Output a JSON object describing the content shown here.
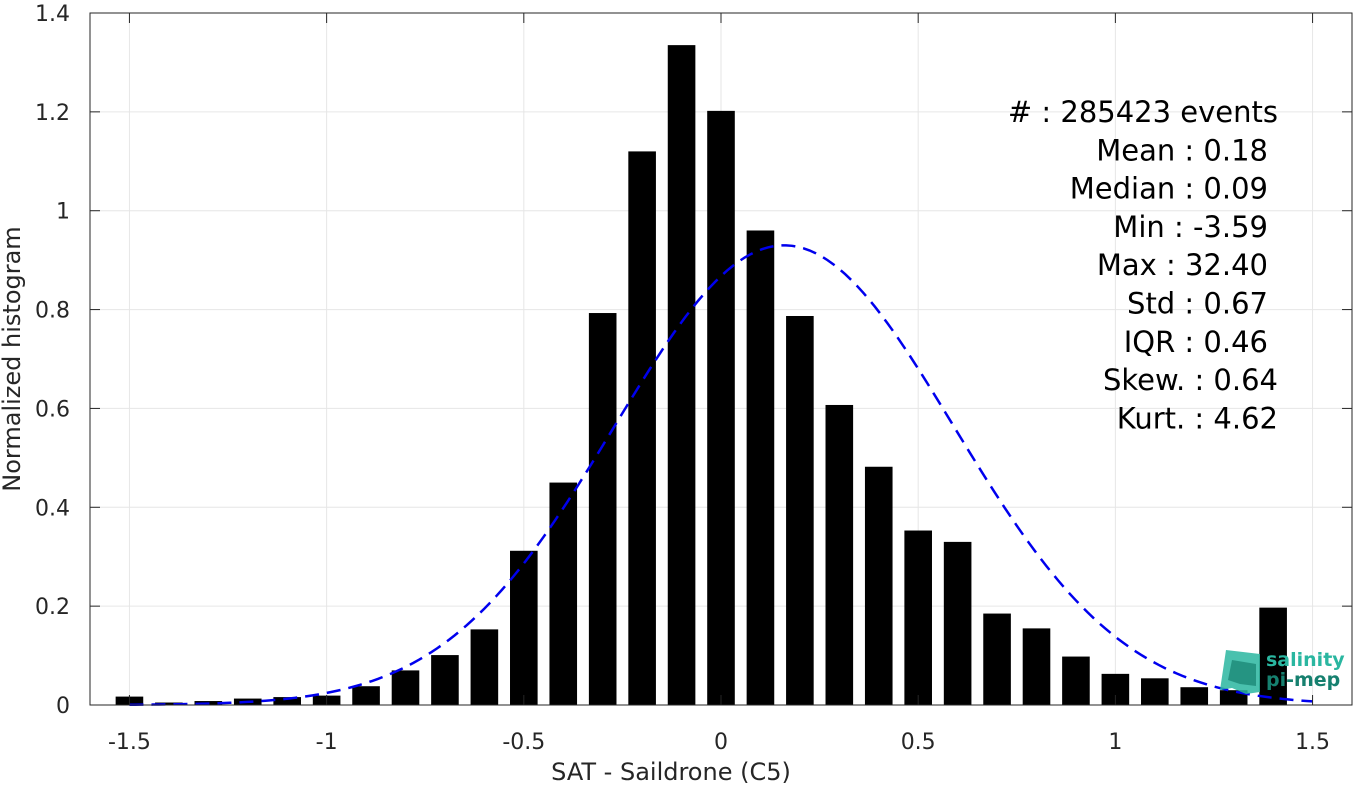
{
  "chart_data": {
    "type": "bar",
    "xlabel": "SAT - Saildrone (C5)",
    "ylabel": "Normalized histogram",
    "xlim": [
      -1.6,
      1.6
    ],
    "ylim": [
      0,
      1.4
    ],
    "xticks": [
      -1.5,
      -1,
      -0.5,
      0,
      0.5,
      1,
      1.5
    ],
    "xtick_labels": [
      "-1.5",
      "-1",
      "-0.5",
      "0",
      "0.5",
      "1",
      "1.5"
    ],
    "yticks": [
      0,
      0.2,
      0.4,
      0.6,
      0.8,
      1,
      1.2,
      1.4
    ],
    "ytick_labels": [
      "0",
      "0.2",
      "0.4",
      "0.6",
      "0.8",
      "1",
      "1.2",
      "1.4"
    ],
    "grid": true,
    "bar_width": 0.07,
    "bar_color": "#000000",
    "x": [
      -1.5,
      -1.4,
      -1.3,
      -1.2,
      -1.1,
      -1.0,
      -0.9,
      -0.8,
      -0.7,
      -0.6,
      -0.5,
      -0.4,
      -0.3,
      -0.2,
      -0.1,
      0.0,
      0.1,
      0.2,
      0.3,
      0.4,
      0.5,
      0.6,
      0.7,
      0.8,
      0.9,
      1.0,
      1.1,
      1.2,
      1.3,
      1.4,
      1.5
    ],
    "values": [
      0.017,
      0.005,
      0.008,
      0.013,
      0.016,
      0.019,
      0.038,
      0.07,
      0.101,
      0.153,
      0.312,
      0.45,
      0.793,
      1.12,
      1.335,
      1.202,
      0.96,
      0.787,
      0.607,
      0.482,
      0.353,
      0.33,
      0.185,
      0.155,
      0.098,
      0.063,
      0.054,
      0.036,
      0.03,
      0.197,
      0.0
    ],
    "fit_curve": {
      "style": "dashed",
      "color": "#0000ee",
      "mean": 0.16,
      "std": 0.43,
      "peak": 0.93,
      "range": [
        -1.5,
        1.5
      ]
    },
    "stats": [
      {
        "label": "#  ",
        "value": "285423 events"
      },
      {
        "label": "Mean",
        "value": "0.18"
      },
      {
        "label": "Median",
        "value": "0.09"
      },
      {
        "label": "Min",
        "value": "-3.59"
      },
      {
        "label": "Max",
        "value": "32.40"
      },
      {
        "label": "Std",
        "value": "0.67"
      },
      {
        "label": "IQR",
        "value": "0.46"
      },
      {
        "label": "Skew.",
        "value": "0.64"
      },
      {
        "label": "Kurt.",
        "value": "4.62"
      }
    ],
    "stats_text": [
      "#  : 285423 events",
      "Mean : 0.18",
      "Median : 0.09",
      "Min : -3.59",
      "Max : 32.40",
      "Std : 0.67",
      "IQR : 0.46",
      "Skew. : 0.64",
      "Kurt. : 4.62"
    ]
  },
  "logo": {
    "line1": "salinity",
    "line2": "pi-mep",
    "color_light": "#2ab6a0",
    "color_dark": "#16806f"
  }
}
